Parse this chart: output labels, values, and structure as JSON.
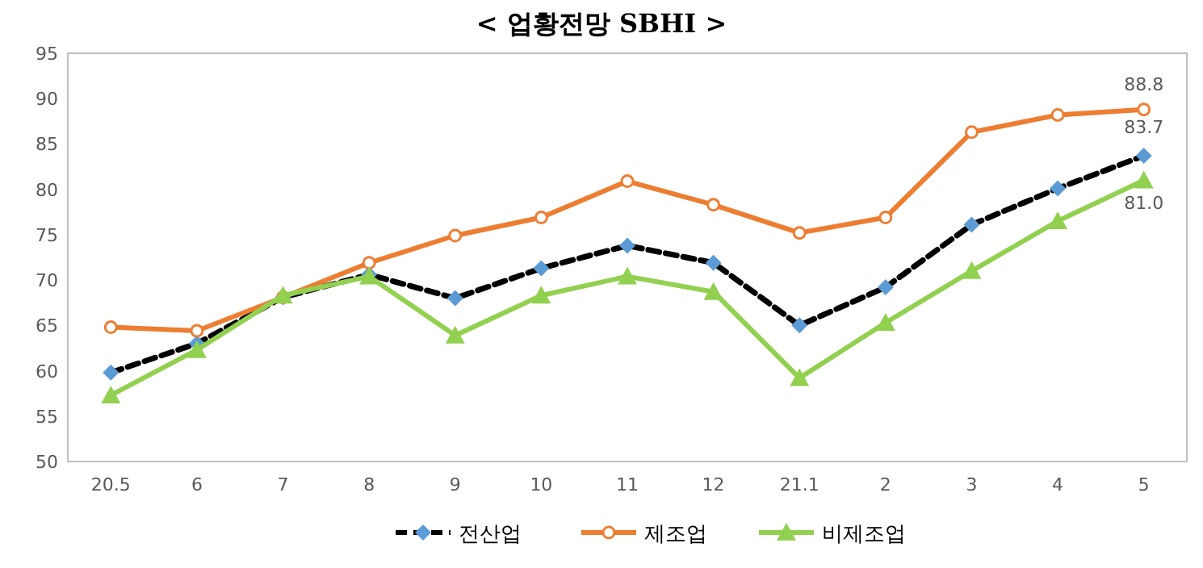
{
  "chart_data": {
    "type": "line",
    "title": "< 업황전망 SBHI >",
    "categories": [
      "20.5",
      "6",
      "7",
      "8",
      "9",
      "10",
      "11",
      "12",
      "21.1",
      "2",
      "3",
      "4",
      "5"
    ],
    "series": [
      {
        "name": "전산업",
        "color": "#000000",
        "marker": "diamond",
        "line_style": "dashed",
        "values": [
          59.8,
          63.0,
          68.1,
          70.6,
          68.0,
          71.3,
          73.8,
          71.9,
          65.0,
          69.2,
          76.1,
          80.1,
          83.7
        ],
        "value_labels": [
          null,
          null,
          null,
          null,
          null,
          null,
          null,
          null,
          null,
          null,
          null,
          null,
          "83.7"
        ]
      },
      {
        "name": "제조업",
        "color": "#ed7d31",
        "marker": "circle",
        "line_style": "solid",
        "values": [
          64.8,
          64.4,
          68.1,
          71.9,
          74.9,
          76.9,
          80.9,
          78.3,
          75.2,
          76.9,
          86.3,
          88.2,
          88.8
        ],
        "value_labels": [
          null,
          null,
          null,
          null,
          null,
          null,
          null,
          null,
          null,
          null,
          null,
          null,
          "88.8"
        ]
      },
      {
        "name": "비제조업",
        "color": "#92d050",
        "marker": "triangle",
        "line_style": "solid",
        "values": [
          57.3,
          62.3,
          68.3,
          70.4,
          63.9,
          68.3,
          70.4,
          68.7,
          59.2,
          65.3,
          71.0,
          76.5,
          81.0
        ],
        "value_labels": [
          null,
          null,
          null,
          null,
          null,
          null,
          null,
          null,
          null,
          null,
          null,
          null,
          "81.0"
        ]
      }
    ],
    "ylim": [
      50,
      95
    ],
    "yticks": [
      50,
      55,
      60,
      65,
      70,
      75,
      80,
      85,
      90,
      95
    ],
    "grid": false,
    "legend": "bottom"
  }
}
